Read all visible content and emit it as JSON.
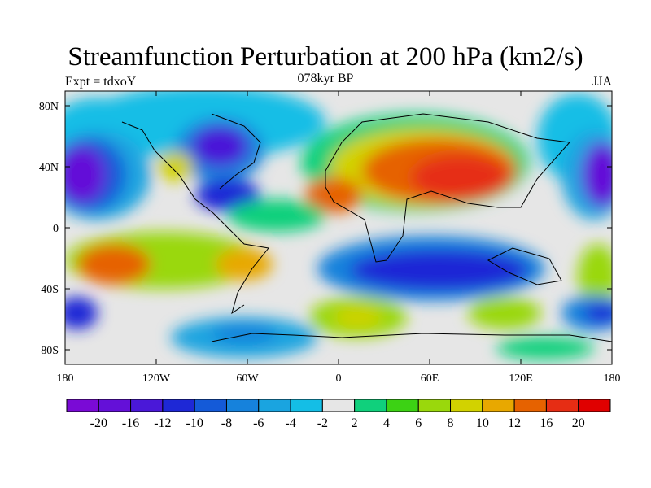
{
  "title": "Streamfunction Perturbation at 200 hPa (km2/s)",
  "subtitle_left": "Expt = tdxoY",
  "subtitle_center": "078kyr BP",
  "subtitle_right": "JJA",
  "lat_ticks": [
    "80N",
    "40N",
    "0",
    "40S",
    "80S"
  ],
  "lon_ticks": [
    "180",
    "120W",
    "60W",
    "0",
    "60E",
    "120E",
    "180"
  ],
  "colorbar": {
    "labels": [
      "-20",
      "-16",
      "-12",
      "-10",
      "-8",
      "-6",
      "-4",
      "-2",
      "2",
      "4",
      "6",
      "8",
      "10",
      "12",
      "16",
      "20"
    ],
    "colors": [
      "#7a0ad6",
      "#6410d8",
      "#4a18d8",
      "#1e28d6",
      "#145ad8",
      "#1682dc",
      "#1aa4e0",
      "#14bee6",
      "#e6e6e6",
      "#10d07c",
      "#3cd214",
      "#9ad80c",
      "#d2d200",
      "#e8a800",
      "#e66200",
      "#e62d14",
      "#e00000"
    ]
  }
}
